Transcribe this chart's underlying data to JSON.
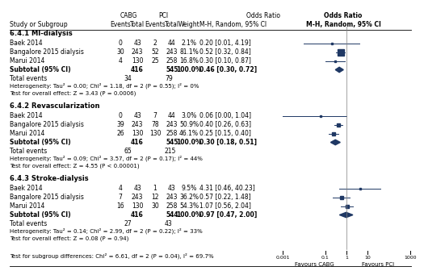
{
  "sections": [
    {
      "heading": "6.4.1 MI-dialysis",
      "studies": [
        {
          "name": "Baek 2014",
          "cabg_e": 0,
          "cabg_n": 43,
          "pci_e": 2,
          "pci_n": 44,
          "weight": "2.1%",
          "or": 0.2,
          "ci_lo": 0.01,
          "ci_hi": 4.19,
          "or_str": "0.20 [0.01, 4.19]"
        },
        {
          "name": "Bangalore 2015 dialysis",
          "cabg_e": 30,
          "cabg_n": 243,
          "pci_e": 52,
          "pci_n": 243,
          "weight": "81.1%",
          "or": 0.52,
          "ci_lo": 0.32,
          "ci_hi": 0.84,
          "or_str": "0.52 [0.32, 0.84]"
        },
        {
          "name": "Marui 2014",
          "cabg_e": 4,
          "cabg_n": 130,
          "pci_e": 25,
          "pci_n": 258,
          "weight": "16.8%",
          "or": 0.3,
          "ci_lo": 0.1,
          "ci_hi": 0.87,
          "or_str": "0.30 [0.10, 0.87]"
        }
      ],
      "subtotal": {
        "cabg_n": 416,
        "pci_n": 545,
        "weight": "100.0%",
        "or": 0.46,
        "ci_lo": 0.3,
        "ci_hi": 0.72,
        "or_str": "0.46 [0.30, 0.72]"
      },
      "total_events_cabg": 34,
      "total_events_pci": 79,
      "heterogeneity": "Heterogeneity: Tau² = 0.00; Chi² = 1.18, df = 2 (P = 0.55); I² = 0%",
      "overall_test": "Test for overall effect: Z = 3.43 (P = 0.0006)"
    },
    {
      "heading": "6.4.2 Revascularization",
      "studies": [
        {
          "name": "Baek 2014",
          "cabg_e": 0,
          "cabg_n": 43,
          "pci_e": 7,
          "pci_n": 44,
          "weight": "3.0%",
          "or": 0.06,
          "ci_lo": 0.001,
          "ci_hi": 1.04,
          "or_str": "0.06 [0.00, 1.04]"
        },
        {
          "name": "Bangalore 2015 dialysis",
          "cabg_e": 39,
          "cabg_n": 243,
          "pci_e": 78,
          "pci_n": 243,
          "weight": "50.9%",
          "or": 0.4,
          "ci_lo": 0.26,
          "ci_hi": 0.63,
          "or_str": "0.40 [0.26, 0.63]"
        },
        {
          "name": "Marui 2014",
          "cabg_e": 26,
          "cabg_n": 130,
          "pci_e": 130,
          "pci_n": 258,
          "weight": "46.1%",
          "or": 0.25,
          "ci_lo": 0.15,
          "ci_hi": 0.4,
          "or_str": "0.25 [0.15, 0.40]"
        }
      ],
      "subtotal": {
        "cabg_n": 416,
        "pci_n": 545,
        "weight": "100.0%",
        "or": 0.3,
        "ci_lo": 0.18,
        "ci_hi": 0.51,
        "or_str": "0.30 [0.18, 0.51]"
      },
      "total_events_cabg": 65,
      "total_events_pci": 215,
      "heterogeneity": "Heterogeneity: Tau² = 0.09; Chi² = 3.57, df = 2 (P = 0.17); I² = 44%",
      "overall_test": "Test for overall effect: Z = 4.55 (P < 0.00001)"
    },
    {
      "heading": "6.4.3 Stroke-dialysis",
      "studies": [
        {
          "name": "Baek 2014",
          "cabg_e": 4,
          "cabg_n": 43,
          "pci_e": 1,
          "pci_n": 43,
          "weight": "9.5%",
          "or": 4.31,
          "ci_lo": 0.46,
          "ci_hi": 40.23,
          "or_str": "4.31 [0.46, 40.23]"
        },
        {
          "name": "Bangalore 2015 dialysis",
          "cabg_e": 7,
          "cabg_n": 243,
          "pci_e": 12,
          "pci_n": 243,
          "weight": "36.2%",
          "or": 0.57,
          "ci_lo": 0.22,
          "ci_hi": 1.48,
          "or_str": "0.57 [0.22, 1.48]"
        },
        {
          "name": "Marui 2014",
          "cabg_e": 16,
          "cabg_n": 130,
          "pci_e": 30,
          "pci_n": 258,
          "weight": "54.3%",
          "or": 1.07,
          "ci_lo": 0.56,
          "ci_hi": 2.04,
          "or_str": "1.07 [0.56, 2.04]"
        }
      ],
      "subtotal": {
        "cabg_n": 416,
        "pci_n": 544,
        "weight": "100.0%",
        "or": 0.97,
        "ci_lo": 0.47,
        "ci_hi": 2.0,
        "or_str": "0.97 [0.47, 2.00]"
      },
      "total_events_cabg": 27,
      "total_events_pci": 43,
      "heterogeneity": "Heterogeneity: Tau² = 0.14; Chi² = 2.99, df = 2 (P = 0.22); I² = 33%",
      "overall_test": "Test for overall effect: Z = 0.08 (P = 0.94)"
    }
  ],
  "subgroup_test": "Test for subgroup differences: Chi² = 6.61, df = 2 (P = 0.04), I² = 69.7%",
  "forest_xticks": [
    0.001,
    0.1,
    1,
    10,
    1000
  ],
  "forest_xtick_labels": [
    "0.001",
    "0.1",
    "1",
    "10",
    "1000"
  ],
  "forest_xlabel_left": "Favours CABG",
  "forest_xlabel_right": "Favours PCI",
  "color_sq": "#1F3864",
  "color_di": "#1F3864",
  "bg_color": "#FFFFFF"
}
